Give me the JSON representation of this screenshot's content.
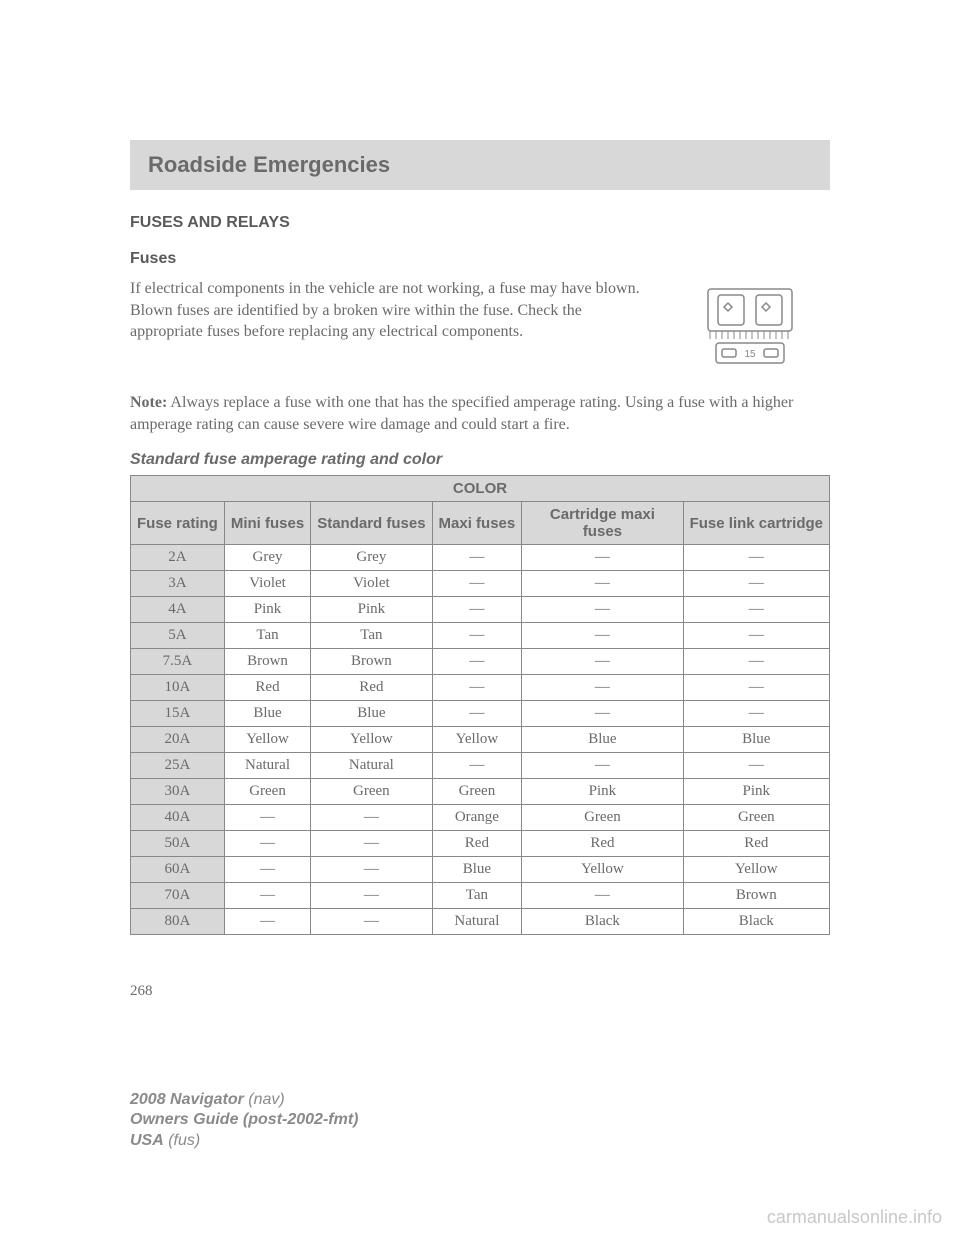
{
  "section_title": "Roadside Emergencies",
  "heading_main": "FUSES AND RELAYS",
  "heading_sub": "Fuses",
  "intro_paragraph": "If electrical components in the vehicle are not working, a fuse may have blown. Blown fuses are identified by a broken wire within the fuse. Check the appropriate fuses before replacing any electrical components.",
  "note_label": "Note:",
  "note_text": " Always replace a fuse with one that has the specified amperage rating. Using a fuse with a higher amperage rating can cause severe wire damage and could start a fire.",
  "table_title": "Standard fuse amperage rating and color",
  "fuse_illustration_label": "15",
  "table": {
    "super_header": "COLOR",
    "headers": [
      "Fuse rating",
      "Mini fuses",
      "Standard fuses",
      "Maxi fuses",
      "Cartridge maxi fuses",
      "Fuse link cartridge"
    ],
    "rows": [
      [
        "2A",
        "Grey",
        "Grey",
        "—",
        "—",
        "—"
      ],
      [
        "3A",
        "Violet",
        "Violet",
        "—",
        "—",
        "—"
      ],
      [
        "4A",
        "Pink",
        "Pink",
        "—",
        "—",
        "—"
      ],
      [
        "5A",
        "Tan",
        "Tan",
        "—",
        "—",
        "—"
      ],
      [
        "7.5A",
        "Brown",
        "Brown",
        "—",
        "—",
        "—"
      ],
      [
        "10A",
        "Red",
        "Red",
        "—",
        "—",
        "—"
      ],
      [
        "15A",
        "Blue",
        "Blue",
        "—",
        "—",
        "—"
      ],
      [
        "20A",
        "Yellow",
        "Yellow",
        "Yellow",
        "Blue",
        "Blue"
      ],
      [
        "25A",
        "Natural",
        "Natural",
        "—",
        "—",
        "—"
      ],
      [
        "30A",
        "Green",
        "Green",
        "Green",
        "Pink",
        "Pink"
      ],
      [
        "40A",
        "—",
        "—",
        "Orange",
        "Green",
        "Green"
      ],
      [
        "50A",
        "—",
        "—",
        "Red",
        "Red",
        "Red"
      ],
      [
        "60A",
        "—",
        "—",
        "Blue",
        "Yellow",
        "Yellow"
      ],
      [
        "70A",
        "—",
        "—",
        "Tan",
        "—",
        "Brown"
      ],
      [
        "80A",
        "—",
        "—",
        "Natural",
        "Black",
        "Black"
      ]
    ]
  },
  "page_number": "268",
  "footer": {
    "model": "2008 Navigator",
    "model_suffix": " (nav)",
    "guide": "Owners Guide (post-2002-fmt)",
    "region": "USA",
    "region_suffix": " (fus)"
  },
  "watermark": "carmanualsonline.info",
  "colors": {
    "header_bg": "#d8d8d8",
    "text": "#6a6a6a",
    "border": "#888888",
    "watermark": "#c8c8c8"
  }
}
